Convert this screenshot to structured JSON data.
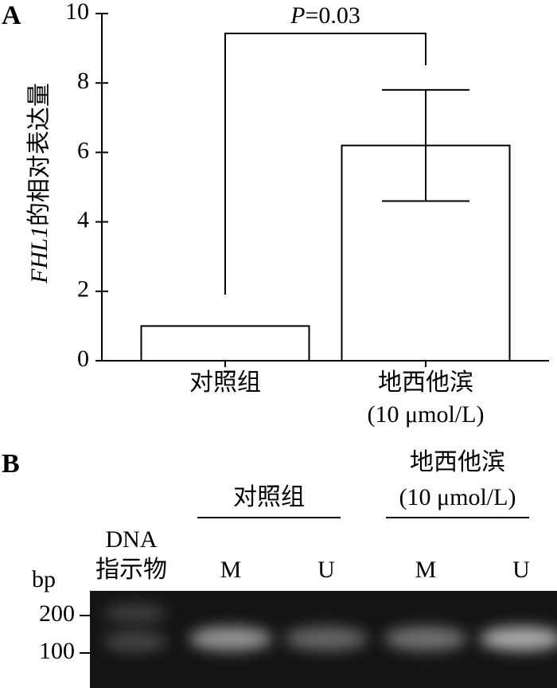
{
  "chart_data": {
    "type": "bar",
    "panel_label": "A",
    "y_label": {
      "gene": "FHL1",
      "text": "的相对表达量"
    },
    "categories": [
      "对照组",
      "地西他滨 (10 μmol/L)"
    ],
    "values": [
      1.0,
      6.2
    ],
    "errors": [
      null,
      1.6
    ],
    "color": "#ffffff",
    "ylim": [
      0,
      10
    ],
    "yticks": [
      0,
      2,
      4,
      6,
      8,
      10
    ],
    "annotation": {
      "symbol": "P",
      "text": "=0.03"
    }
  },
  "panel_b": {
    "panel_label": "B",
    "unit": "bp",
    "ladder": [
      "DNA",
      "指示物"
    ],
    "markers": [
      "200",
      "100"
    ],
    "groups": [
      {
        "label": [
          "对照组"
        ],
        "lanes": [
          "M",
          "U"
        ]
      },
      {
        "label": [
          "地西他滨",
          "(10 μmol/L)"
        ],
        "lanes": [
          "M",
          "U"
        ]
      }
    ]
  }
}
